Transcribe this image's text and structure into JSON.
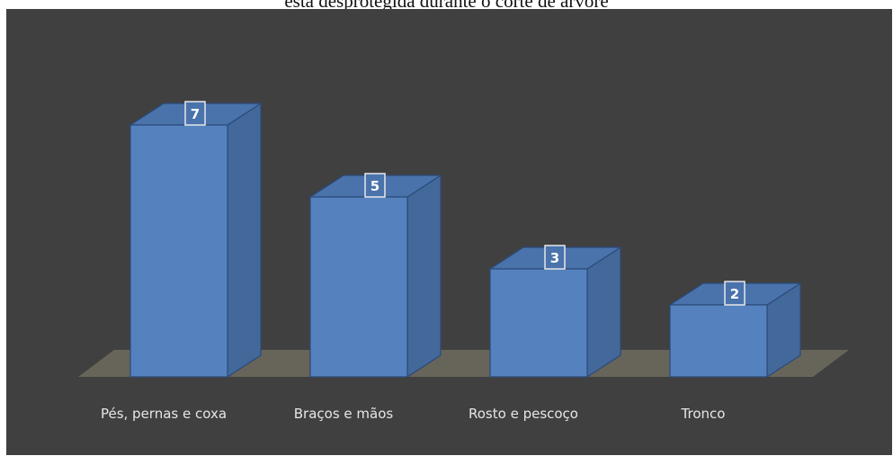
{
  "caption": "está desprotegida durante o corte de árvore",
  "chart_data": {
    "type": "bar",
    "style": "3d-column",
    "title": "",
    "xlabel": "",
    "ylabel": "",
    "categories": [
      "Pés, pernas e coxa",
      "Braços e mãos",
      "Rosto e pescoço",
      "Tronco"
    ],
    "values": [
      7,
      5,
      3,
      2
    ],
    "data_labels": [
      "7",
      "5",
      "3",
      "2"
    ],
    "ylim": [
      0,
      8
    ],
    "grid": false,
    "legend": "none",
    "colors": {
      "background": "#404040",
      "bar_front": "#5582BE",
      "bar_side": "#43689A",
      "bar_top": "#4A73AC",
      "bar_edge": "#2B4A7A",
      "floor": "#67655A",
      "label_text": "#E6E6E6"
    }
  }
}
